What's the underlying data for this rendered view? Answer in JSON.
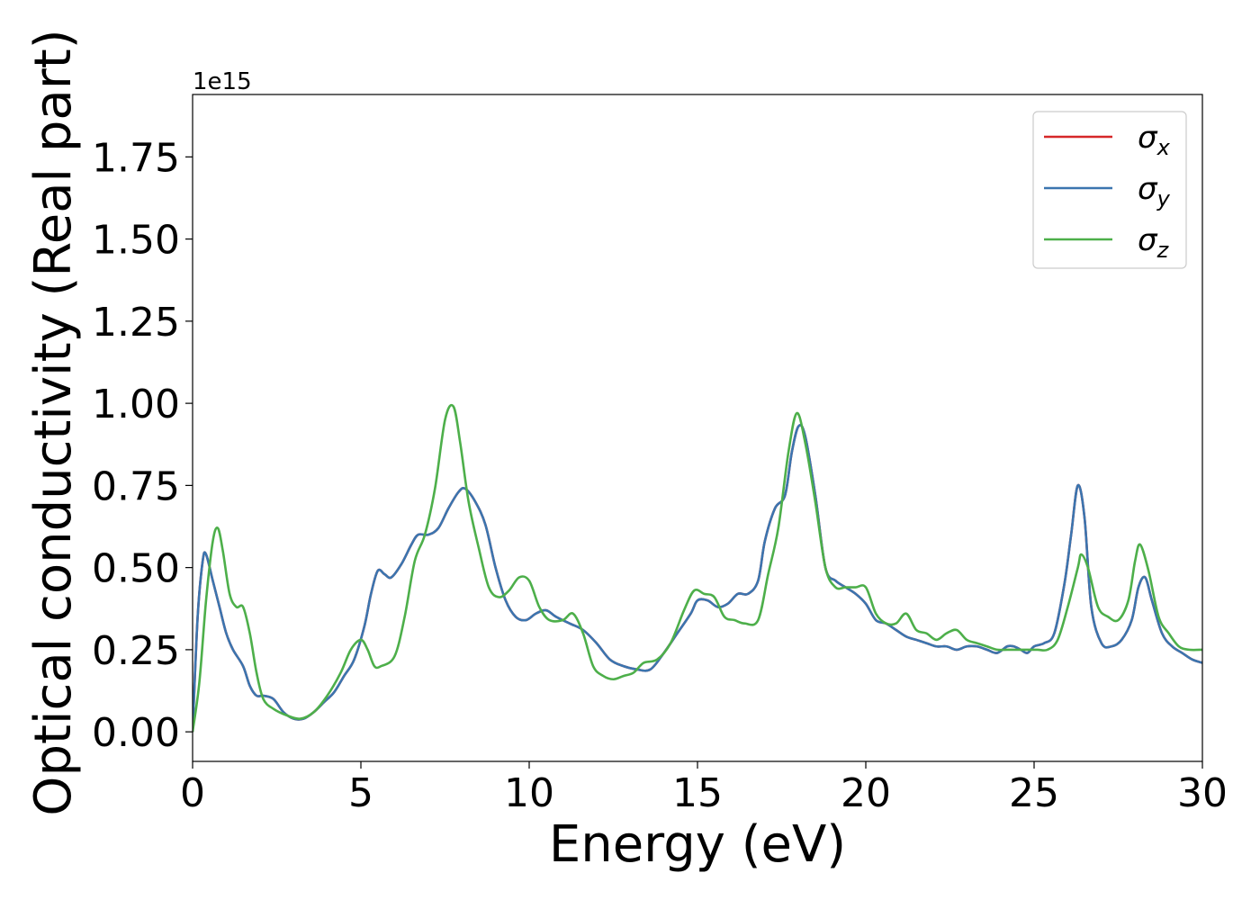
{
  "chart_data": {
    "type": "line",
    "xlabel": "Energy (eV)",
    "ylabel": "Optical conductivity (Real part)",
    "y_offset_label": "1e15",
    "xlim": [
      0,
      30
    ],
    "ylim": [
      -0.09,
      1.94
    ],
    "x_ticks": [
      0,
      5,
      10,
      15,
      20,
      25,
      30
    ],
    "x_tick_labels": [
      "0",
      "5",
      "10",
      "15",
      "20",
      "25",
      "30"
    ],
    "y_ticks": [
      0.0,
      0.25,
      0.5,
      0.75,
      1.0,
      1.25,
      1.5,
      1.75
    ],
    "y_tick_labels": [
      "0.00",
      "0.25",
      "0.50",
      "0.75",
      "1.00",
      "1.25",
      "1.50",
      "1.75"
    ],
    "grid": false,
    "legend_position": "top-right",
    "series": [
      {
        "name": "σx",
        "symbol": "σ",
        "subscript": "x",
        "color": "#d62728",
        "x": [
          0,
          0.15,
          0.3,
          0.4,
          0.6,
          0.8,
          1.0,
          1.2,
          1.5,
          1.7,
          1.9,
          2.1,
          2.4,
          2.7,
          3.0,
          3.3,
          3.6,
          3.9,
          4.2,
          4.5,
          4.8,
          5.1,
          5.3,
          5.5,
          5.7,
          5.9,
          6.2,
          6.5,
          6.7,
          7.0,
          7.3,
          7.6,
          7.9,
          8.1,
          8.4,
          8.7,
          9.0,
          9.3,
          9.6,
          9.9,
          10.2,
          10.5,
          10.8,
          11.2,
          11.6,
          12.0,
          12.4,
          12.8,
          13.2,
          13.6,
          14.0,
          14.4,
          14.8,
          15.0,
          15.3,
          15.6,
          15.9,
          16.2,
          16.5,
          16.8,
          17.0,
          17.3,
          17.6,
          17.8,
          18.0,
          18.2,
          18.5,
          18.8,
          19.1,
          19.4,
          19.7,
          20.0,
          20.3,
          20.6,
          20.9,
          21.2,
          21.5,
          21.8,
          22.1,
          22.4,
          22.7,
          23.0,
          23.3,
          23.6,
          23.9,
          24.2,
          24.4,
          24.6,
          24.8,
          25.0,
          25.3,
          25.6,
          25.9,
          26.1,
          26.3,
          26.5,
          26.7,
          27.0,
          27.3,
          27.6,
          27.9,
          28.1,
          28.3,
          28.5,
          28.8,
          29.1,
          29.4,
          29.7,
          30.0
        ],
        "values": [
          0.0,
          0.35,
          0.52,
          0.54,
          0.46,
          0.38,
          0.3,
          0.25,
          0.2,
          0.14,
          0.11,
          0.11,
          0.1,
          0.06,
          0.04,
          0.04,
          0.06,
          0.09,
          0.12,
          0.17,
          0.22,
          0.32,
          0.42,
          0.49,
          0.48,
          0.47,
          0.51,
          0.57,
          0.6,
          0.6,
          0.62,
          0.68,
          0.73,
          0.74,
          0.7,
          0.63,
          0.5,
          0.4,
          0.35,
          0.34,
          0.36,
          0.37,
          0.35,
          0.33,
          0.31,
          0.27,
          0.22,
          0.2,
          0.19,
          0.19,
          0.24,
          0.3,
          0.36,
          0.4,
          0.4,
          0.38,
          0.39,
          0.42,
          0.42,
          0.46,
          0.58,
          0.68,
          0.72,
          0.85,
          0.93,
          0.9,
          0.72,
          0.5,
          0.46,
          0.44,
          0.42,
          0.39,
          0.34,
          0.33,
          0.31,
          0.29,
          0.28,
          0.27,
          0.26,
          0.26,
          0.25,
          0.26,
          0.26,
          0.25,
          0.24,
          0.26,
          0.26,
          0.25,
          0.24,
          0.26,
          0.27,
          0.3,
          0.45,
          0.6,
          0.75,
          0.65,
          0.38,
          0.27,
          0.26,
          0.28,
          0.34,
          0.44,
          0.47,
          0.4,
          0.3,
          0.26,
          0.24,
          0.22,
          0.21
        ]
      },
      {
        "name": "σy",
        "symbol": "σ",
        "subscript": "y",
        "color": "#3b75af",
        "x": [
          0,
          0.15,
          0.3,
          0.4,
          0.6,
          0.8,
          1.0,
          1.2,
          1.5,
          1.7,
          1.9,
          2.1,
          2.4,
          2.7,
          3.0,
          3.3,
          3.6,
          3.9,
          4.2,
          4.5,
          4.8,
          5.1,
          5.3,
          5.5,
          5.7,
          5.9,
          6.2,
          6.5,
          6.7,
          7.0,
          7.3,
          7.6,
          7.9,
          8.1,
          8.4,
          8.7,
          9.0,
          9.3,
          9.6,
          9.9,
          10.2,
          10.5,
          10.8,
          11.2,
          11.6,
          12.0,
          12.4,
          12.8,
          13.2,
          13.6,
          14.0,
          14.4,
          14.8,
          15.0,
          15.3,
          15.6,
          15.9,
          16.2,
          16.5,
          16.8,
          17.0,
          17.3,
          17.6,
          17.8,
          18.0,
          18.2,
          18.5,
          18.8,
          19.1,
          19.4,
          19.7,
          20.0,
          20.3,
          20.6,
          20.9,
          21.2,
          21.5,
          21.8,
          22.1,
          22.4,
          22.7,
          23.0,
          23.3,
          23.6,
          23.9,
          24.2,
          24.4,
          24.6,
          24.8,
          25.0,
          25.3,
          25.6,
          25.9,
          26.1,
          26.3,
          26.5,
          26.7,
          27.0,
          27.3,
          27.6,
          27.9,
          28.1,
          28.3,
          28.5,
          28.8,
          29.1,
          29.4,
          29.7,
          30.0
        ],
        "values": [
          0.0,
          0.35,
          0.52,
          0.54,
          0.46,
          0.38,
          0.3,
          0.25,
          0.2,
          0.14,
          0.11,
          0.11,
          0.1,
          0.06,
          0.04,
          0.04,
          0.06,
          0.09,
          0.12,
          0.17,
          0.22,
          0.32,
          0.42,
          0.49,
          0.48,
          0.47,
          0.51,
          0.57,
          0.6,
          0.6,
          0.62,
          0.68,
          0.73,
          0.74,
          0.7,
          0.63,
          0.5,
          0.4,
          0.35,
          0.34,
          0.36,
          0.37,
          0.35,
          0.33,
          0.31,
          0.27,
          0.22,
          0.2,
          0.19,
          0.19,
          0.24,
          0.3,
          0.36,
          0.4,
          0.4,
          0.38,
          0.39,
          0.42,
          0.42,
          0.46,
          0.58,
          0.68,
          0.72,
          0.85,
          0.93,
          0.9,
          0.72,
          0.5,
          0.46,
          0.44,
          0.42,
          0.39,
          0.34,
          0.33,
          0.31,
          0.29,
          0.28,
          0.27,
          0.26,
          0.26,
          0.25,
          0.26,
          0.26,
          0.25,
          0.24,
          0.26,
          0.26,
          0.25,
          0.24,
          0.26,
          0.27,
          0.3,
          0.45,
          0.6,
          0.75,
          0.65,
          0.38,
          0.27,
          0.26,
          0.28,
          0.34,
          0.44,
          0.47,
          0.4,
          0.3,
          0.26,
          0.24,
          0.22,
          0.21
        ]
      },
      {
        "name": "σz",
        "symbol": "σ",
        "subscript": "z",
        "color": "#4daf4a",
        "x": [
          0,
          0.2,
          0.4,
          0.6,
          0.75,
          0.9,
          1.1,
          1.3,
          1.5,
          1.7,
          1.9,
          2.1,
          2.4,
          2.8,
          3.2,
          3.6,
          4.0,
          4.4,
          4.7,
          5.0,
          5.2,
          5.4,
          5.6,
          6.0,
          6.3,
          6.6,
          6.9,
          7.2,
          7.5,
          7.75,
          7.95,
          8.2,
          8.5,
          8.8,
          9.1,
          9.4,
          9.7,
          10.0,
          10.3,
          10.6,
          11.0,
          11.3,
          11.6,
          11.9,
          12.2,
          12.5,
          12.8,
          13.1,
          13.4,
          13.8,
          14.2,
          14.6,
          14.9,
          15.2,
          15.5,
          15.8,
          16.1,
          16.4,
          16.8,
          17.1,
          17.4,
          17.7,
          17.95,
          18.2,
          18.5,
          18.8,
          19.1,
          19.4,
          19.7,
          20.0,
          20.3,
          20.6,
          20.9,
          21.2,
          21.5,
          21.8,
          22.1,
          22.4,
          22.7,
          23.0,
          23.3,
          23.6,
          23.9,
          24.2,
          24.5,
          24.8,
          25.1,
          25.4,
          25.7,
          26.0,
          26.3,
          26.4,
          26.6,
          26.9,
          27.2,
          27.5,
          27.8,
          28.0,
          28.15,
          28.4,
          28.7,
          29.0,
          29.3,
          29.6,
          30.0
        ],
        "values": [
          0.0,
          0.15,
          0.4,
          0.58,
          0.62,
          0.55,
          0.42,
          0.38,
          0.38,
          0.3,
          0.18,
          0.1,
          0.07,
          0.05,
          0.04,
          0.06,
          0.11,
          0.18,
          0.25,
          0.28,
          0.25,
          0.2,
          0.2,
          0.23,
          0.35,
          0.52,
          0.6,
          0.74,
          0.95,
          0.99,
          0.88,
          0.7,
          0.56,
          0.44,
          0.41,
          0.43,
          0.47,
          0.46,
          0.38,
          0.34,
          0.34,
          0.36,
          0.3,
          0.2,
          0.17,
          0.16,
          0.17,
          0.18,
          0.21,
          0.22,
          0.27,
          0.37,
          0.43,
          0.42,
          0.41,
          0.35,
          0.34,
          0.33,
          0.34,
          0.48,
          0.62,
          0.85,
          0.97,
          0.88,
          0.7,
          0.5,
          0.44,
          0.44,
          0.44,
          0.44,
          0.36,
          0.33,
          0.33,
          0.36,
          0.31,
          0.3,
          0.28,
          0.3,
          0.31,
          0.28,
          0.27,
          0.26,
          0.25,
          0.25,
          0.25,
          0.25,
          0.25,
          0.25,
          0.28,
          0.38,
          0.5,
          0.54,
          0.5,
          0.38,
          0.35,
          0.34,
          0.4,
          0.52,
          0.57,
          0.49,
          0.35,
          0.3,
          0.26,
          0.25,
          0.25
        ]
      }
    ]
  }
}
